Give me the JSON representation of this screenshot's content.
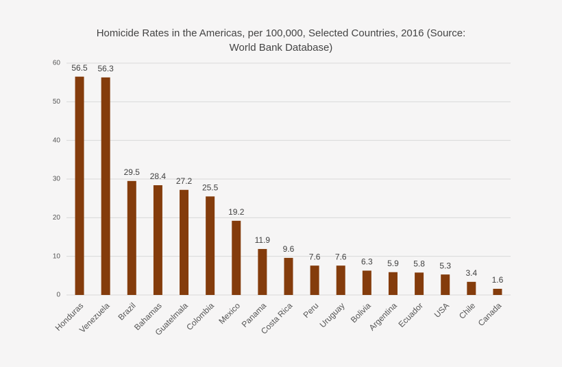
{
  "chart_data": {
    "type": "bar",
    "title": "Homicide Rates in the Americas, per 100,000, Selected Countries, 2016 (Source: World Bank Database)",
    "categories": [
      "Honduras",
      "Venezuela",
      "Brazil",
      "Bahamas",
      "Guatelmala",
      "Colombia",
      "Mexico",
      "Panama",
      "Costa Rica",
      "Peru",
      "Uruguay",
      "Bolivia",
      "Argentina",
      "Ecuador",
      "USA",
      "Chile",
      "Canada"
    ],
    "values": [
      56.5,
      56.3,
      29.5,
      28.4,
      27.2,
      25.5,
      19.2,
      11.9,
      9.6,
      7.6,
      7.6,
      6.3,
      5.9,
      5.8,
      5.3,
      3.4,
      1.6
    ],
    "color": "#843c0c",
    "ylim": [
      0,
      60
    ],
    "yticks": [
      0,
      10,
      20,
      30,
      40,
      50,
      60
    ],
    "grid": true,
    "data_labels": true
  }
}
